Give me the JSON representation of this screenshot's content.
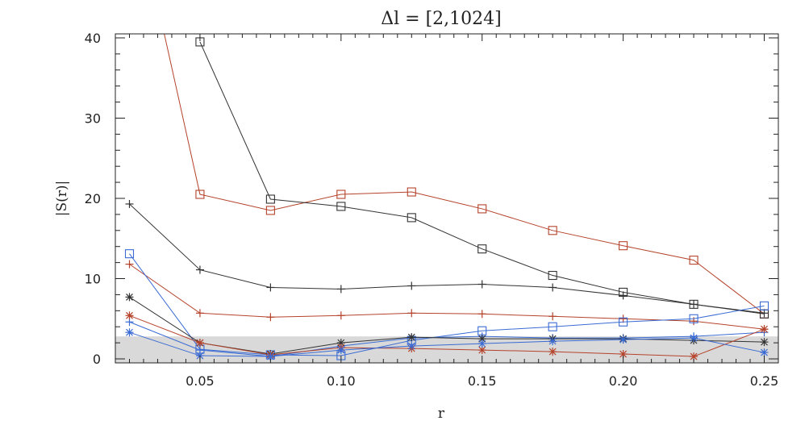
{
  "chart_data": {
    "type": "line",
    "title": "Δl = [2,1024]",
    "xlabel": "r",
    "ylabel": "|S(r)|",
    "xlim": [
      0.02,
      0.255
    ],
    "ylim": [
      -0.5,
      40.5
    ],
    "xticks": [
      0.05,
      0.1,
      0.15,
      0.2,
      0.25
    ],
    "xtick_labels": [
      "0.05",
      "0.10",
      "0.15",
      "0.20",
      "0.25"
    ],
    "yticks": [
      0,
      10,
      20,
      30,
      40
    ],
    "ytick_labels": [
      "0",
      "10",
      "20",
      "30",
      "40"
    ],
    "shaded_band": [
      0,
      2.8
    ],
    "shaded_color": "#d9d9d9",
    "grid": false,
    "x": [
      0.025,
      0.05,
      0.075,
      0.1,
      0.125,
      0.15,
      0.175,
      0.2,
      0.225,
      0.25
    ],
    "series": [
      {
        "color": "#b5432b",
        "marker": "square",
        "values": [
          60,
          20.5,
          18.5,
          20.5,
          20.8,
          18.7,
          16.0,
          14.1,
          12.3,
          5.6
        ]
      },
      {
        "color": "#333333",
        "marker": "square",
        "values": [
          null,
          39.5,
          19.9,
          19.0,
          17.6,
          13.7,
          10.4,
          8.3,
          6.8,
          5.6
        ]
      },
      {
        "color": "#333333",
        "marker": "plus",
        "values": [
          19.3,
          11.1,
          8.9,
          8.7,
          9.1,
          9.3,
          8.9,
          7.9,
          6.8,
          5.7
        ]
      },
      {
        "color": "#b5432b",
        "marker": "plus",
        "values": [
          11.8,
          5.7,
          5.2,
          5.4,
          5.7,
          5.6,
          5.3,
          5.0,
          4.7,
          3.7
        ]
      },
      {
        "color": "#3a6bd4",
        "marker": "square",
        "values": [
          13.1,
          1.2,
          0.5,
          0.4,
          2.3,
          3.5,
          4.0,
          4.6,
          5.0,
          6.6
        ]
      },
      {
        "color": "#3a6bd4",
        "marker": "plus",
        "values": [
          4.6,
          1.1,
          0.3,
          1.6,
          2.6,
          2.8,
          2.6,
          2.6,
          2.8,
          3.3
        ]
      },
      {
        "color": "#333333",
        "marker": "asterisk",
        "values": [
          7.7,
          2.0,
          0.6,
          2.0,
          2.7,
          2.5,
          2.5,
          2.5,
          2.3,
          2.1
        ]
      },
      {
        "color": "#b5432b",
        "marker": "asterisk",
        "values": [
          5.4,
          2.0,
          0.5,
          1.4,
          1.3,
          1.1,
          0.9,
          0.6,
          0.3,
          3.7
        ]
      },
      {
        "color": "#3a6bd4",
        "marker": "asterisk",
        "values": [
          3.3,
          0.4,
          0.3,
          1.1,
          1.6,
          1.9,
          2.2,
          2.4,
          2.6,
          0.8
        ]
      }
    ]
  }
}
